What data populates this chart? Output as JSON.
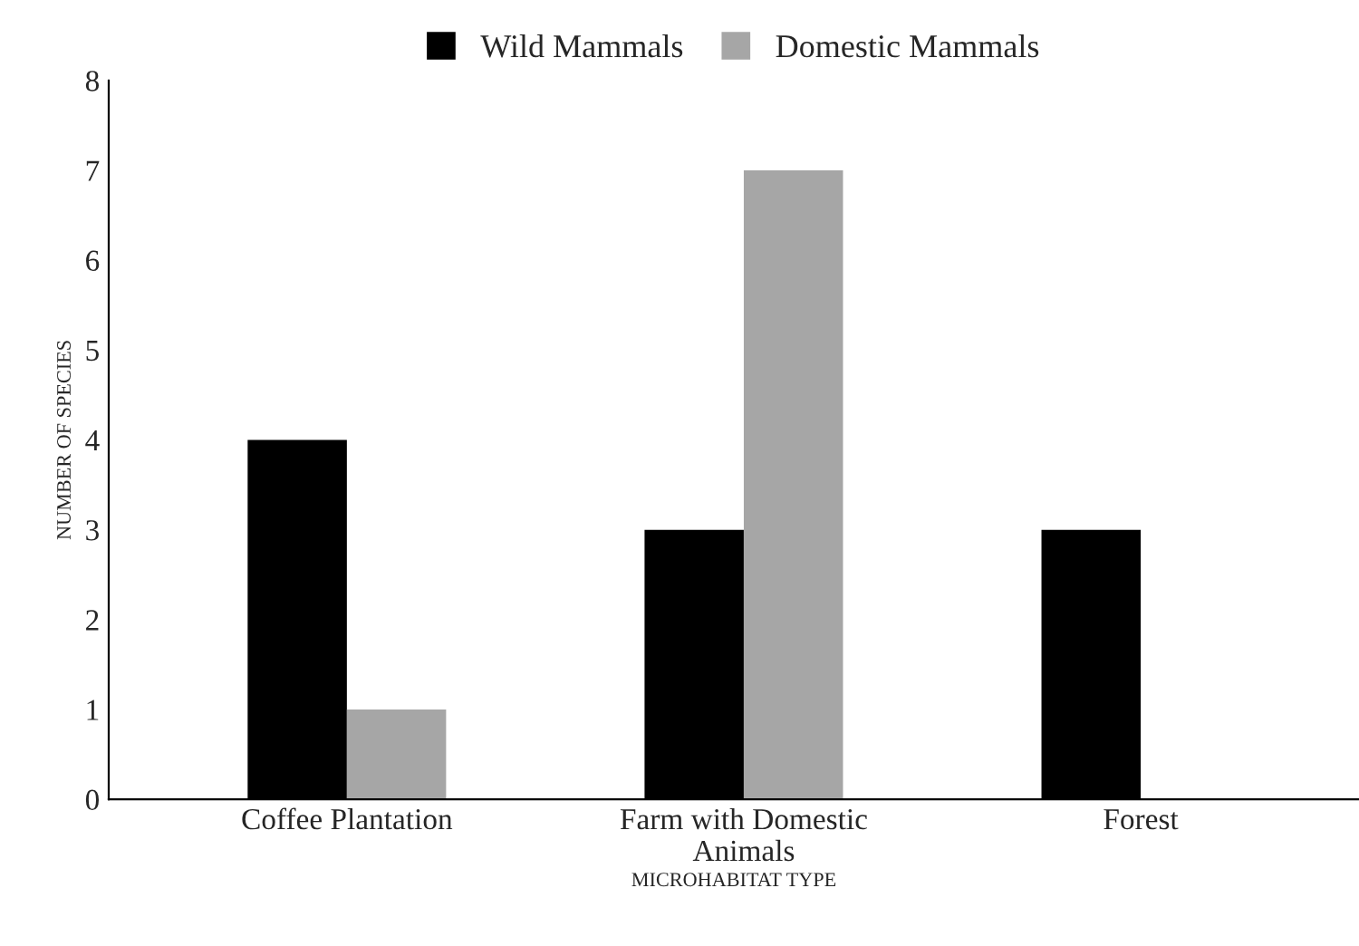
{
  "chart_data": {
    "type": "bar",
    "xlabel": "MICROHABITAT TYPE",
    "ylabel": "NUMBER OF SPECIES",
    "categories": [
      "Coffee Plantation",
      "Farm with Domestic Animals",
      "Forest"
    ],
    "series": [
      {
        "name": "Wild Mammals",
        "color": "#000000",
        "values": [
          4,
          3,
          3
        ]
      },
      {
        "name": "Domestic Mammals",
        "color": "#a6a6a6",
        "values": [
          1,
          7,
          null
        ]
      }
    ],
    "ylim": [
      0,
      8
    ],
    "yticks": [
      0,
      1,
      2,
      3,
      4,
      5,
      6,
      7,
      8
    ],
    "grid": false,
    "legend": "top"
  }
}
